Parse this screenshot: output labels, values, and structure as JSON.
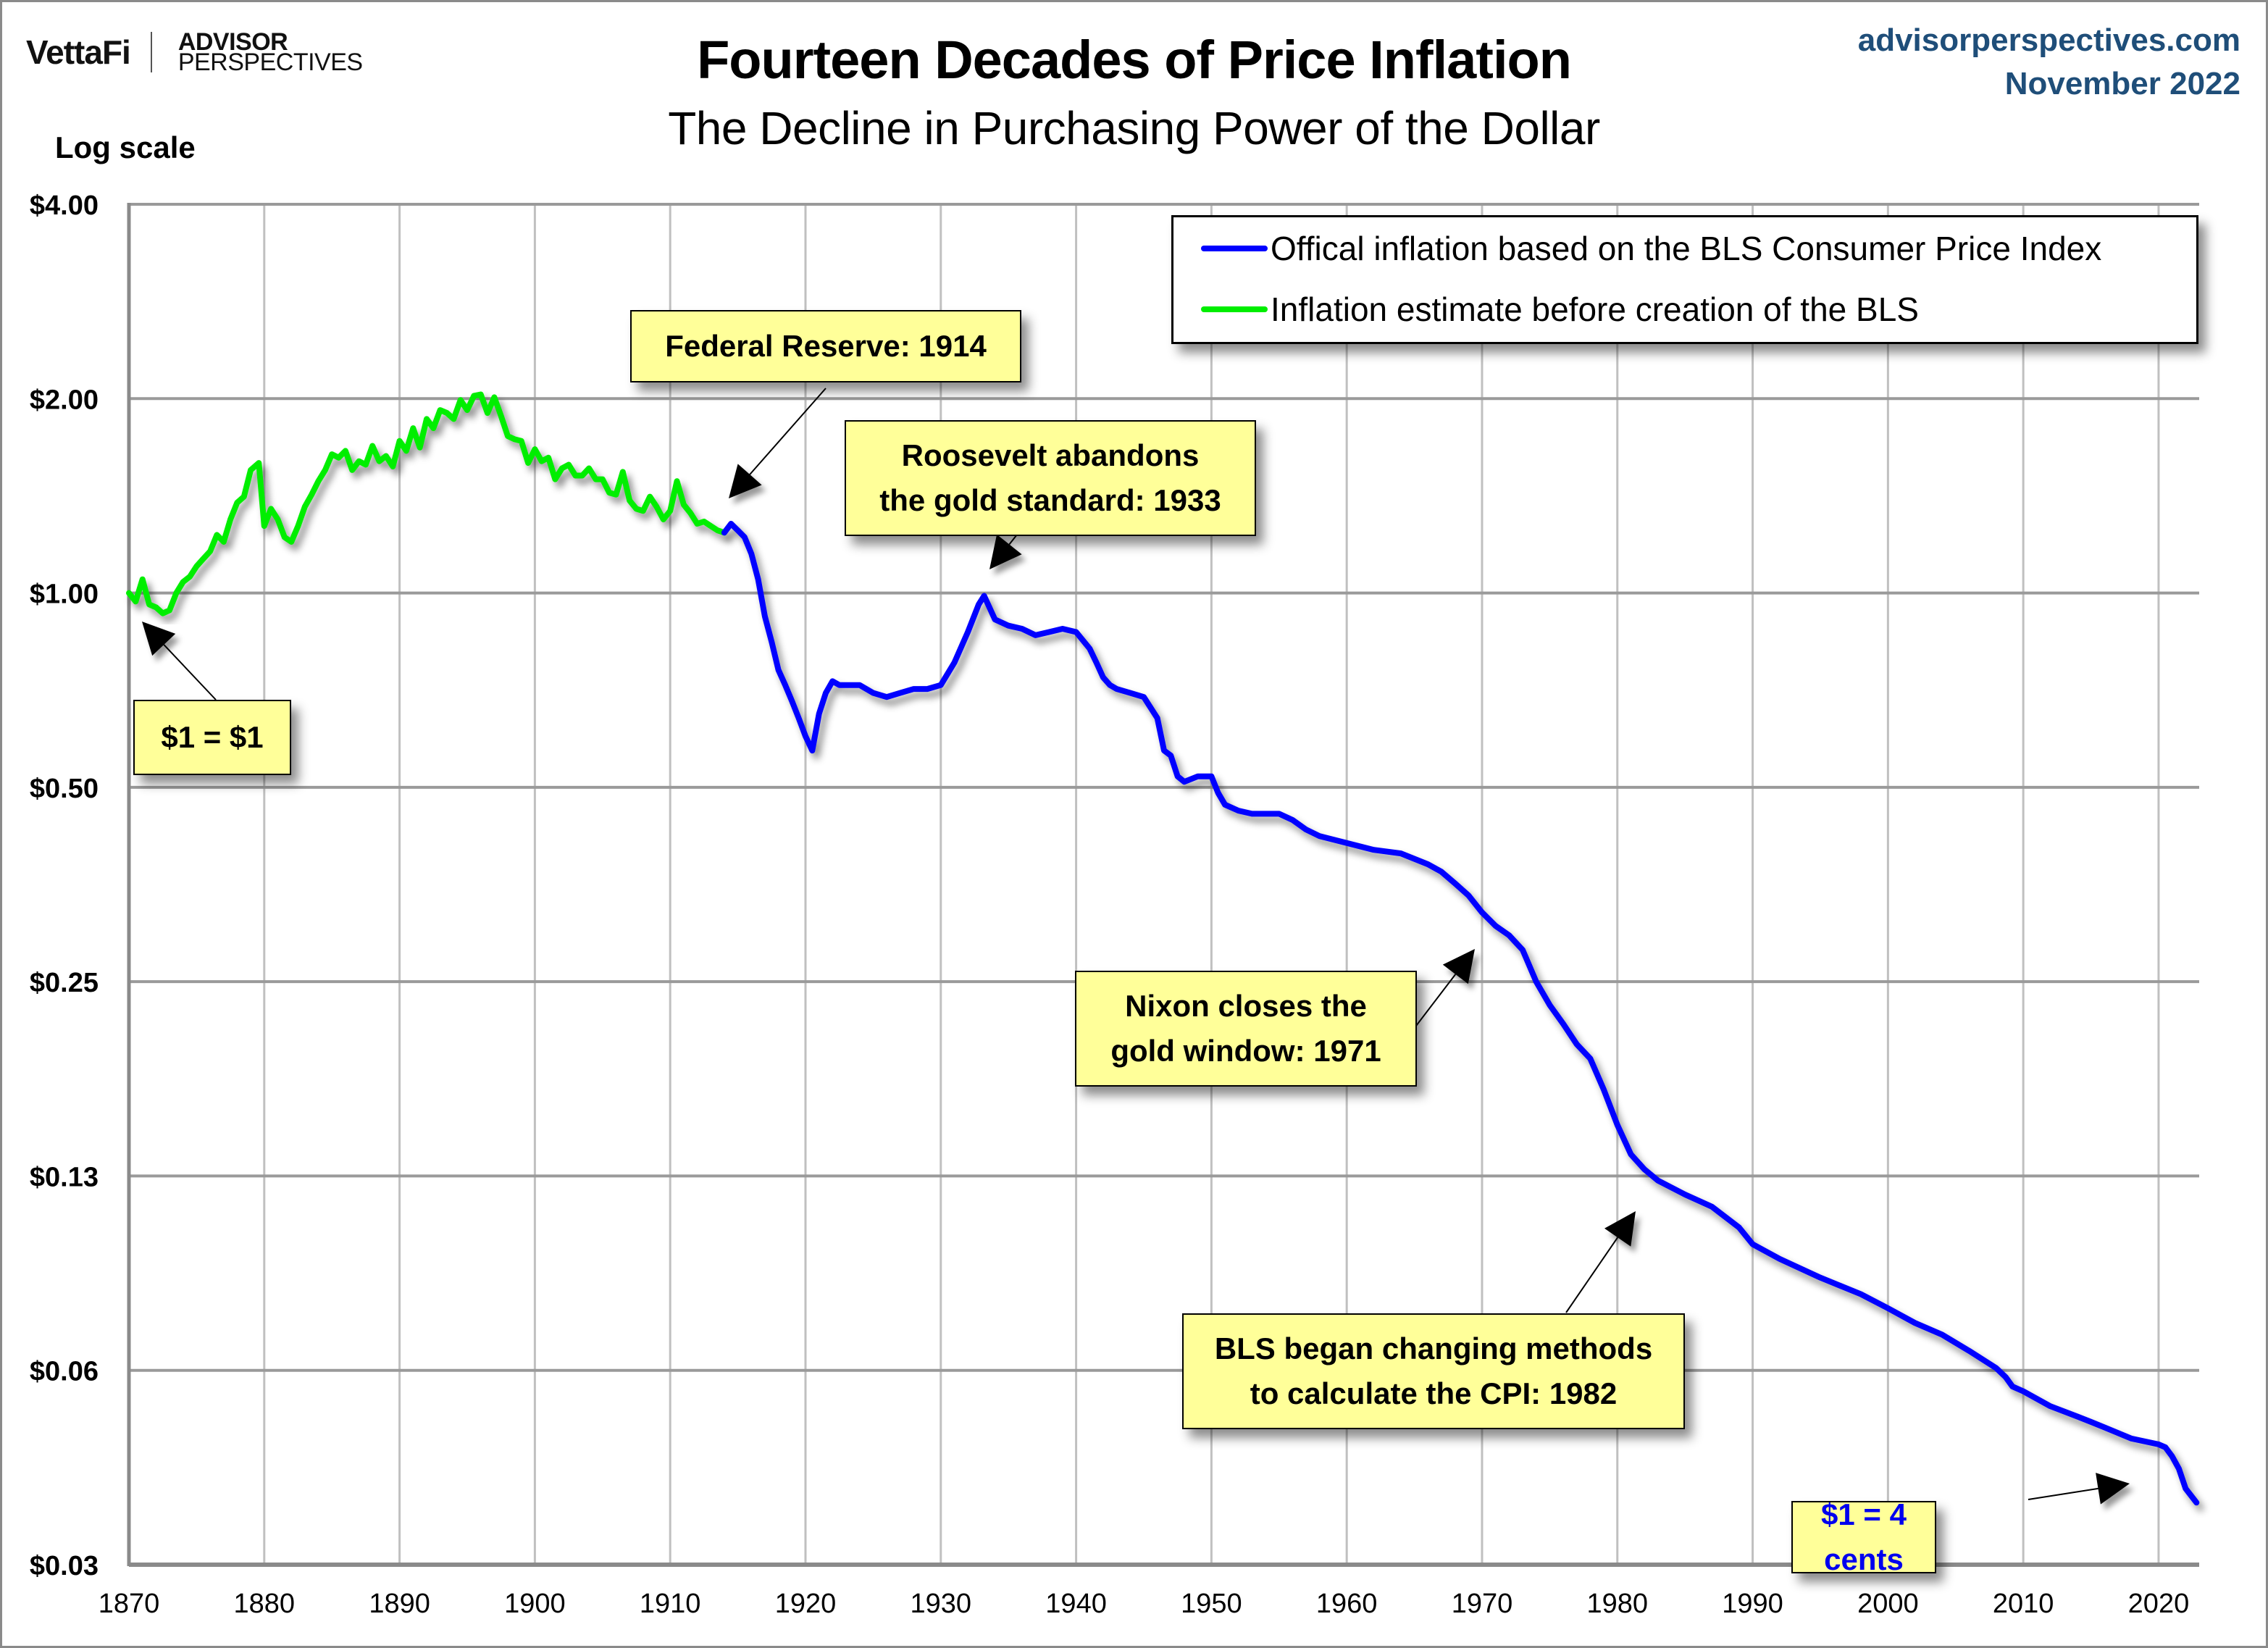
{
  "header": {
    "logo_primary": "VettaFi",
    "logo_secondary_line1": "ADVISOR",
    "logo_secondary_line2": "PERSPECTIVES",
    "title": "Fourteen Decades of Price Inflation",
    "subtitle": "The Decline in Purchasing Power of the Dollar",
    "site": "advisorperspectives.com",
    "date": "November 2022",
    "scale_note": "Log scale"
  },
  "legend": {
    "items": [
      {
        "label": "Offical inflation based on the BLS Consumer Price Index",
        "color": "#0000ff"
      },
      {
        "label": "Inflation estimate before creation of the BLS",
        "color": "#00ee00"
      }
    ]
  },
  "annotations": [
    {
      "text": "$1 = $1",
      "year": 1870.3,
      "value": 0.98
    },
    {
      "text": "Federal Reserve: 1914",
      "year": 1914,
      "value": 1.25
    },
    {
      "text": "Roosevelt abandons\nthe gold standard: 1933",
      "year": 1933,
      "value": 0.98
    },
    {
      "text": "Nixon closes the\ngold window: 1971",
      "year": 1971,
      "value": 0.26
    },
    {
      "text": "BLS began  changing methods\nto calculate the CPI: 1982",
      "year": 1982,
      "value": 0.12
    },
    {
      "text": "$1 = 4 cents",
      "year": 2022.5,
      "value": 0.037
    }
  ],
  "chart_data": {
    "type": "line",
    "title": "Fourteen Decades of Price Inflation",
    "subtitle": "The Decline in Purchasing Power of the Dollar",
    "xlabel": "",
    "ylabel": "Log scale",
    "xlim": [
      1870,
      2023
    ],
    "ylim": [
      0.03125,
      4
    ],
    "yscale": "log2",
    "grid": true,
    "legend_position": "top-right",
    "x_ticks": [
      "1870",
      "1880",
      "1890",
      "1900",
      "1910",
      "1920",
      "1930",
      "1940",
      "1950",
      "1960",
      "1970",
      "1980",
      "1990",
      "2000",
      "2010",
      "2020"
    ],
    "y_ticks": [
      {
        "label": "$4.00",
        "value": 4
      },
      {
        "label": "$2.00",
        "value": 2
      },
      {
        "label": "$1.00",
        "value": 1
      },
      {
        "label": "$0.50",
        "value": 0.5
      },
      {
        "label": "$0.25",
        "value": 0.25
      },
      {
        "label": "$0.13",
        "value": 0.125
      },
      {
        "label": "$0.06",
        "value": 0.0625
      },
      {
        "label": "$0.03",
        "value": 0.03125
      }
    ],
    "series": [
      {
        "name": "Inflation estimate before creation of the BLS",
        "color": "#00ee00",
        "x": [
          1870.0,
          1870.5,
          1871.0,
          1871.5,
          1872.0,
          1872.5,
          1873.0,
          1873.5,
          1874.0,
          1874.5,
          1875.0,
          1875.5,
          1876.0,
          1876.5,
          1877.0,
          1877.5,
          1878.0,
          1878.5,
          1879.0,
          1879.3,
          1879.6,
          1880.0,
          1880.5,
          1881.0,
          1881.5,
          1882.0,
          1882.5,
          1883.0,
          1883.5,
          1884.0,
          1884.5,
          1885.0,
          1885.5,
          1886.0,
          1886.5,
          1887.0,
          1887.5,
          1888.0,
          1888.5,
          1889.0,
          1889.5,
          1890.0,
          1890.5,
          1891.0,
          1891.5,
          1892.0,
          1892.5,
          1893.0,
          1893.5,
          1894.0,
          1894.5,
          1895.0,
          1895.5,
          1896.0,
          1896.5,
          1897.0,
          1897.5,
          1898.0,
          1898.5,
          1899.0,
          1899.5,
          1900.0,
          1900.5,
          1901.0,
          1901.5,
          1902.0,
          1902.5,
          1903.0,
          1903.5,
          1904.0,
          1904.5,
          1905.0,
          1905.5,
          1906.0,
          1906.5,
          1907.0,
          1907.5,
          1908.0,
          1908.5,
          1909.0,
          1909.5,
          1910.0,
          1910.5,
          1911.0,
          1911.5,
          1912.0,
          1912.5,
          1913.0,
          1913.5,
          1914.0
        ],
        "values": [
          1.0,
          0.97,
          1.05,
          0.96,
          0.95,
          0.93,
          0.94,
          1.0,
          1.04,
          1.06,
          1.1,
          1.13,
          1.16,
          1.23,
          1.2,
          1.3,
          1.38,
          1.41,
          1.55,
          1.57,
          1.59,
          1.27,
          1.35,
          1.3,
          1.22,
          1.2,
          1.27,
          1.36,
          1.42,
          1.49,
          1.55,
          1.64,
          1.62,
          1.66,
          1.55,
          1.6,
          1.58,
          1.69,
          1.6,
          1.63,
          1.57,
          1.72,
          1.66,
          1.8,
          1.68,
          1.86,
          1.8,
          1.92,
          1.9,
          1.86,
          1.99,
          1.92,
          2.02,
          2.03,
          1.9,
          2.01,
          1.88,
          1.75,
          1.73,
          1.72,
          1.59,
          1.67,
          1.6,
          1.62,
          1.5,
          1.56,
          1.58,
          1.52,
          1.52,
          1.56,
          1.5,
          1.5,
          1.43,
          1.42,
          1.54,
          1.39,
          1.35,
          1.34,
          1.41,
          1.36,
          1.3,
          1.34,
          1.49,
          1.37,
          1.33,
          1.28,
          1.29,
          1.27,
          1.25,
          1.24
        ]
      },
      {
        "name": "Offical inflation based on the BLS Consumer Price Index",
        "color": "#0000ff",
        "x": [
          1914.0,
          1914.5,
          1915.0,
          1915.5,
          1916.0,
          1916.5,
          1917.0,
          1917.5,
          1918.0,
          1918.5,
          1919.0,
          1919.5,
          1920.0,
          1920.5,
          1921.0,
          1921.5,
          1922.0,
          1922.5,
          1923.0,
          1924.0,
          1925.0,
          1926.0,
          1927.0,
          1928.0,
          1929.0,
          1930.0,
          1931.0,
          1932.0,
          1932.8,
          1933.2,
          1934.0,
          1935.0,
          1936.0,
          1937.0,
          1938.0,
          1939.0,
          1940.0,
          1941.0,
          1941.5,
          1942.0,
          1942.5,
          1943.0,
          1944.0,
          1945.0,
          1946.0,
          1946.5,
          1947.0,
          1947.5,
          1948.0,
          1949.0,
          1950.0,
          1950.5,
          1951.0,
          1952.0,
          1953.0,
          1955.0,
          1956.0,
          1957.0,
          1958.0,
          1960.0,
          1962.0,
          1964.0,
          1966.0,
          1967.0,
          1968.0,
          1969.0,
          1970.0,
          1971.0,
          1972.0,
          1973.0,
          1974.0,
          1975.0,
          1976.0,
          1977.0,
          1978.0,
          1979.0,
          1980.0,
          1981.0,
          1982.0,
          1983.0,
          1985.0,
          1987.0,
          1989.0,
          1990.0,
          1992.0,
          1995.0,
          1998.0,
          2000.0,
          2002.0,
          2004.0,
          2006.0,
          2008.0,
          2008.7,
          2009.2,
          2010.0,
          2012.0,
          2014.0,
          2015.0,
          2016.0,
          2018.0,
          2020.0,
          2020.5,
          2021.0,
          2021.5,
          2022.0,
          2022.8
        ],
        "values": [
          1.24,
          1.28,
          1.25,
          1.22,
          1.15,
          1.05,
          0.92,
          0.84,
          0.76,
          0.72,
          0.68,
          0.64,
          0.6,
          0.57,
          0.65,
          0.7,
          0.73,
          0.72,
          0.72,
          0.72,
          0.7,
          0.69,
          0.7,
          0.71,
          0.71,
          0.72,
          0.78,
          0.87,
          0.96,
          0.99,
          0.91,
          0.89,
          0.88,
          0.86,
          0.87,
          0.88,
          0.87,
          0.82,
          0.78,
          0.74,
          0.72,
          0.71,
          0.7,
          0.69,
          0.64,
          0.57,
          0.56,
          0.52,
          0.51,
          0.52,
          0.52,
          0.49,
          0.47,
          0.46,
          0.455,
          0.455,
          0.445,
          0.43,
          0.42,
          0.41,
          0.4,
          0.395,
          0.38,
          0.37,
          0.355,
          0.34,
          0.32,
          0.305,
          0.295,
          0.28,
          0.25,
          0.23,
          0.215,
          0.2,
          0.19,
          0.17,
          0.15,
          0.135,
          0.128,
          0.123,
          0.117,
          0.112,
          0.104,
          0.098,
          0.093,
          0.087,
          0.082,
          0.078,
          0.074,
          0.071,
          0.067,
          0.063,
          0.061,
          0.059,
          0.058,
          0.055,
          0.053,
          0.052,
          0.051,
          0.049,
          0.048,
          0.0475,
          0.046,
          0.044,
          0.041,
          0.039
        ]
      }
    ]
  }
}
